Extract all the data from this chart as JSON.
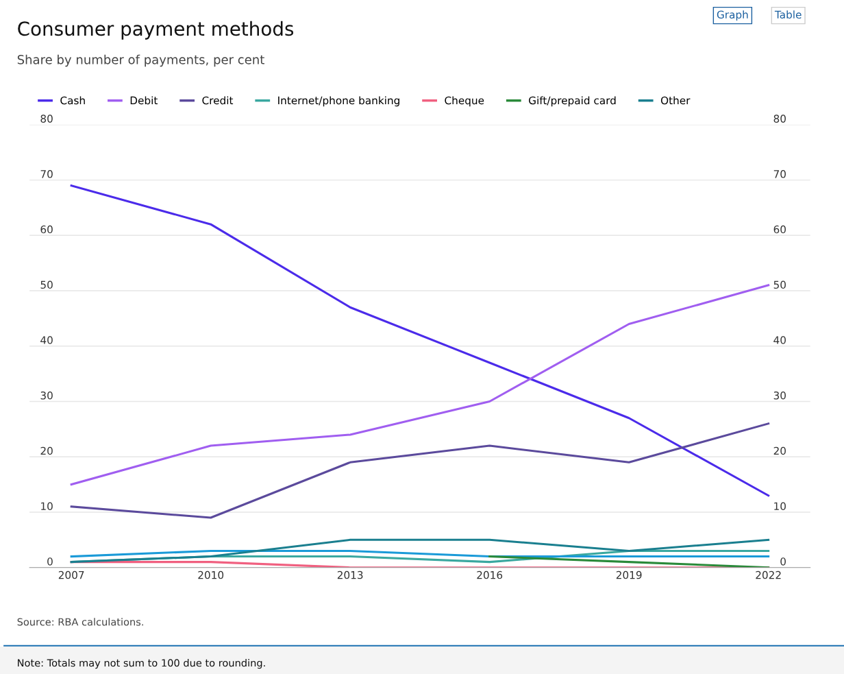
{
  "chart_data": {
    "type": "line",
    "title": "Consumer payment methods",
    "subtitle": "Share by number of payments, per cent",
    "categories": [
      "2007",
      "2010",
      "2013",
      "2016",
      "2019",
      "2022"
    ],
    "series": [
      {
        "name": "Cash",
        "color": "#4b2bea",
        "values": [
          69,
          62,
          47,
          37,
          27,
          13
        ]
      },
      {
        "name": "Debit",
        "color": "#a05ef0",
        "values": [
          15,
          22,
          24,
          30,
          44,
          51
        ]
      },
      {
        "name": "Credit",
        "color": "#5b4a9c",
        "values": [
          11,
          9,
          19,
          22,
          19,
          26
        ]
      },
      {
        "name": "Internet/phone banking",
        "color": "#3aa8a0",
        "values": [
          1,
          2,
          2,
          1,
          3,
          3
        ]
      },
      {
        "name": "Cheque",
        "color": "#f06080",
        "values": [
          1,
          1,
          0,
          0,
          0,
          0
        ]
      },
      {
        "color": "#1a9ad8",
        "values": [
          2,
          3,
          3,
          2,
          2,
          2
        ]
      },
      {
        "name": "Gift/prepaid card",
        "color": "#2a8a3a",
        "values": [
          null,
          null,
          null,
          2,
          1,
          0
        ]
      },
      {
        "name": "Other",
        "color": "#1a7f8f",
        "values": [
          1,
          2,
          5,
          5,
          3,
          5
        ]
      }
    ],
    "ylim": [
      0,
      80
    ],
    "yticks": [
      0,
      10,
      20,
      30,
      40,
      50,
      60,
      70,
      80
    ],
    "y2lim": [
      0,
      80
    ],
    "y2ticks": [
      0,
      10,
      20,
      30,
      40,
      50,
      60,
      70,
      80
    ],
    "grid": "y",
    "legend": "top",
    "marker": "none",
    "line_style": "solid",
    "annotations": [
      "Source: RBA calculations.",
      "Note: Totals may not sum to 100 due to rounding.",
      "Graph",
      "Table"
    ]
  }
}
